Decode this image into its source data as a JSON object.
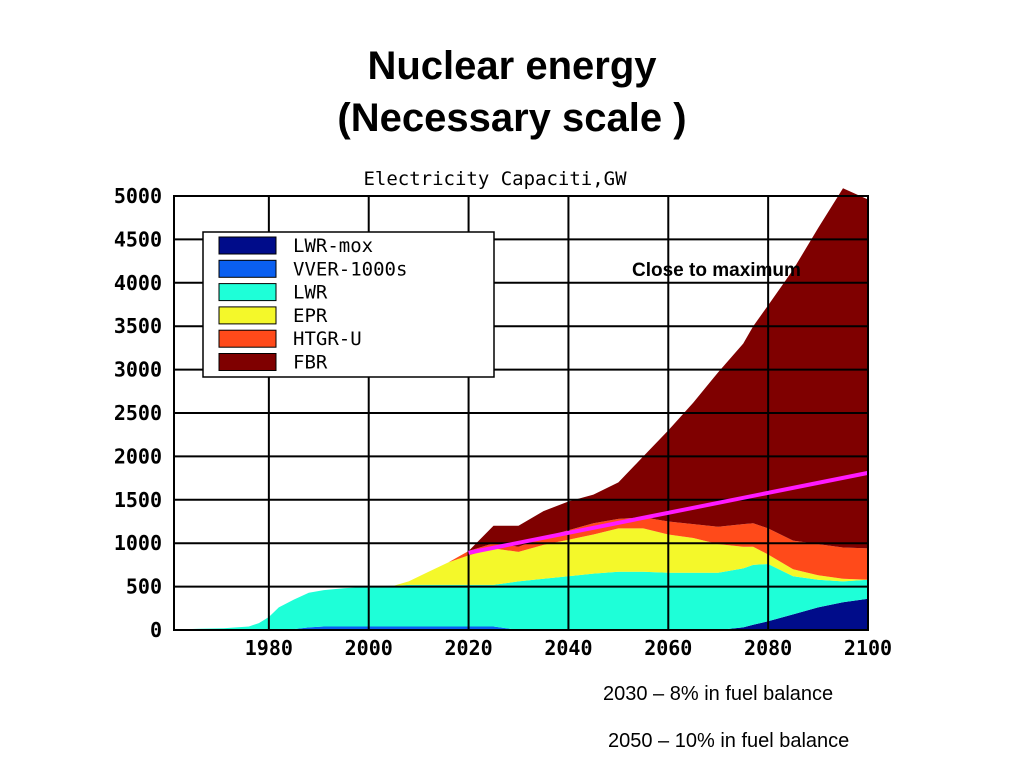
{
  "slide": {
    "title_line1": "Nuclear energy",
    "title_line2": "(Necessary scale )",
    "notes": [
      "2030 – 8% in fuel balance",
      "2050 – 10% in fuel balance"
    ]
  },
  "chart_data": {
    "type": "area",
    "stacked": true,
    "title": "Electricity Capaciti,GW",
    "xlabel": "",
    "ylabel": "",
    "xlim": [
      1961,
      2100
    ],
    "ylim": [
      0,
      5000
    ],
    "x_ticks": [
      1980,
      2000,
      2020,
      2040,
      2060,
      2080,
      2100
    ],
    "y_ticks": [
      0,
      500,
      1000,
      1500,
      2000,
      2500,
      3000,
      3500,
      4000,
      4500,
      5000
    ],
    "grid": true,
    "legend_position": "top-left",
    "x": [
      1961,
      1966,
      1971,
      1976,
      1978,
      1980,
      1982,
      1985,
      1988,
      1991,
      1995,
      2000,
      2005,
      2008,
      2012,
      2016,
      2020,
      2025,
      2030,
      2035,
      2040,
      2045,
      2050,
      2055,
      2060,
      2065,
      2070,
      2075,
      2077,
      2080,
      2085,
      2090,
      2095,
      2100
    ],
    "series": [
      {
        "name": "LWR-mox",
        "color": "#000c8a",
        "values": [
          0,
          0,
          0,
          0,
          0,
          0,
          0,
          0,
          0,
          0,
          0,
          0,
          0,
          0,
          0,
          0,
          0,
          0,
          0,
          0,
          0,
          0,
          0,
          0,
          0,
          0,
          0,
          30,
          60,
          100,
          180,
          260,
          320,
          360
        ]
      },
      {
        "name": "VVER-1000s",
        "color": "#0a5ff0",
        "values": [
          0,
          0,
          0,
          0,
          0,
          0,
          0,
          10,
          30,
          40,
          40,
          40,
          40,
          40,
          40,
          40,
          40,
          40,
          0,
          0,
          0,
          0,
          0,
          0,
          0,
          0,
          0,
          0,
          0,
          0,
          0,
          0,
          0,
          0
        ]
      },
      {
        "name": "LWR",
        "color": "#1effd8",
        "values": [
          5,
          15,
          20,
          40,
          80,
          150,
          260,
          340,
          400,
          420,
          440,
          460,
          470,
          480,
          480,
          480,
          480,
          480,
          560,
          590,
          620,
          650,
          670,
          670,
          660,
          660,
          660,
          680,
          690,
          660,
          440,
          320,
          240,
          220
        ]
      },
      {
        "name": "EPR",
        "color": "#f4f82a",
        "values": [
          0,
          0,
          0,
          0,
          0,
          0,
          0,
          0,
          0,
          0,
          0,
          0,
          0,
          40,
          150,
          260,
          340,
          420,
          340,
          390,
          420,
          450,
          500,
          500,
          440,
          400,
          330,
          250,
          210,
          110,
          80,
          50,
          30,
          0
        ]
      },
      {
        "name": "HTGR-U",
        "color": "#ff4a1a",
        "values": [
          0,
          0,
          0,
          0,
          0,
          0,
          0,
          0,
          0,
          0,
          0,
          0,
          0,
          0,
          0,
          0,
          50,
          60,
          60,
          90,
          110,
          130,
          110,
          130,
          150,
          160,
          200,
          260,
          270,
          300,
          330,
          360,
          360,
          360
        ]
      },
      {
        "name": "FBR",
        "color": "#7f0000",
        "values": [
          0,
          0,
          0,
          0,
          0,
          0,
          0,
          0,
          0,
          0,
          0,
          0,
          0,
          0,
          0,
          0,
          0,
          200,
          240,
          300,
          330,
          330,
          420,
          700,
          1050,
          1400,
          1780,
          2080,
          2270,
          2570,
          3120,
          3640,
          4140,
          4020
        ]
      }
    ],
    "reference_line": {
      "color": "#ff1aff",
      "x": [
        2020,
        2100
      ],
      "y": [
        890,
        1810
      ]
    },
    "annotation": "Close to maximum"
  }
}
